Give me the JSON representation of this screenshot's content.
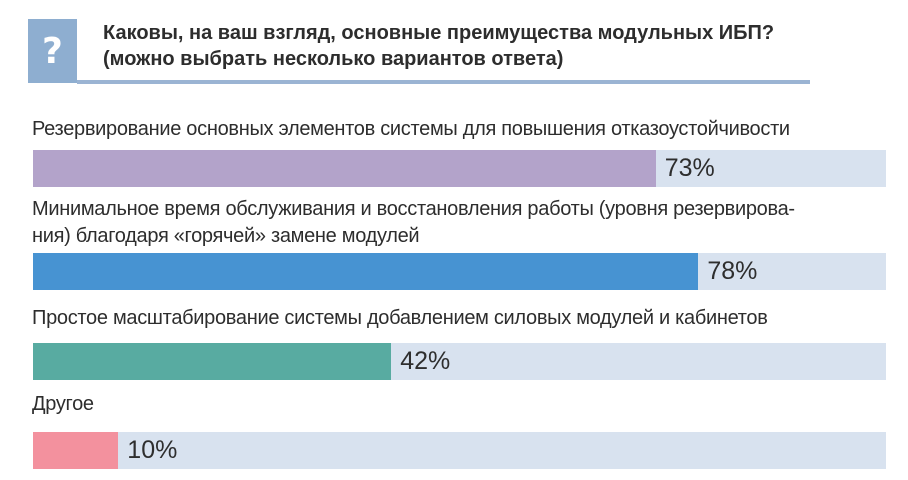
{
  "header": {
    "icon_glyph": "?",
    "title_lines": [
      "Каковы, на ваш взгляд, основные преимущества модульных ИБП?",
      "(можно выбрать несколько вариантов ответа)"
    ],
    "box_color": "#8eaed0",
    "rule_color": "#9bb4d3"
  },
  "chart_data": {
    "type": "bar",
    "orientation": "horizontal",
    "title": "Каковы, на ваш взгляд, основные преимущества модульных ИБП? (можно выбрать несколько вариантов ответа)",
    "categories": [
      "Резервирование основных элементов системы для повышения отказоустойчивости",
      "Минимальное время обслуживания и восстановления работы (уровня резервирования) благодаря «горячей» замене модулей",
      "Простое масштабирование системы добавлением силовых модулей и кабинетов",
      "Другое"
    ],
    "values": [
      73,
      78,
      42,
      10
    ],
    "unit": "%",
    "xlim": [
      0,
      100
    ],
    "track_color": "#d8e2ef",
    "bar_colors": [
      "#b3a3ca",
      "#4793d2",
      "#58aba1",
      "#f3919e"
    ]
  },
  "bars": [
    {
      "label_lines": [
        "Резервирование основных элементов системы для повышения отказоустойчивости"
      ],
      "value": 73,
      "pct_label": "73%",
      "color": "#b3a3ca"
    },
    {
      "label_lines": [
        "Минимальное время обслуживания и восстановления работы (уровня резервирова-",
        "ния) благодаря «горячей» замене модулей"
      ],
      "value": 78,
      "pct_label": "78%",
      "color": "#4793d2"
    },
    {
      "label_lines": [
        "Простое масштабирование системы добавлением силовых модулей и кабинетов"
      ],
      "value": 42,
      "pct_label": "42%",
      "color": "#58aba1"
    },
    {
      "label_lines": [
        "Другое"
      ],
      "value": 10,
      "pct_label": "10%",
      "color": "#f3919e"
    }
  ]
}
